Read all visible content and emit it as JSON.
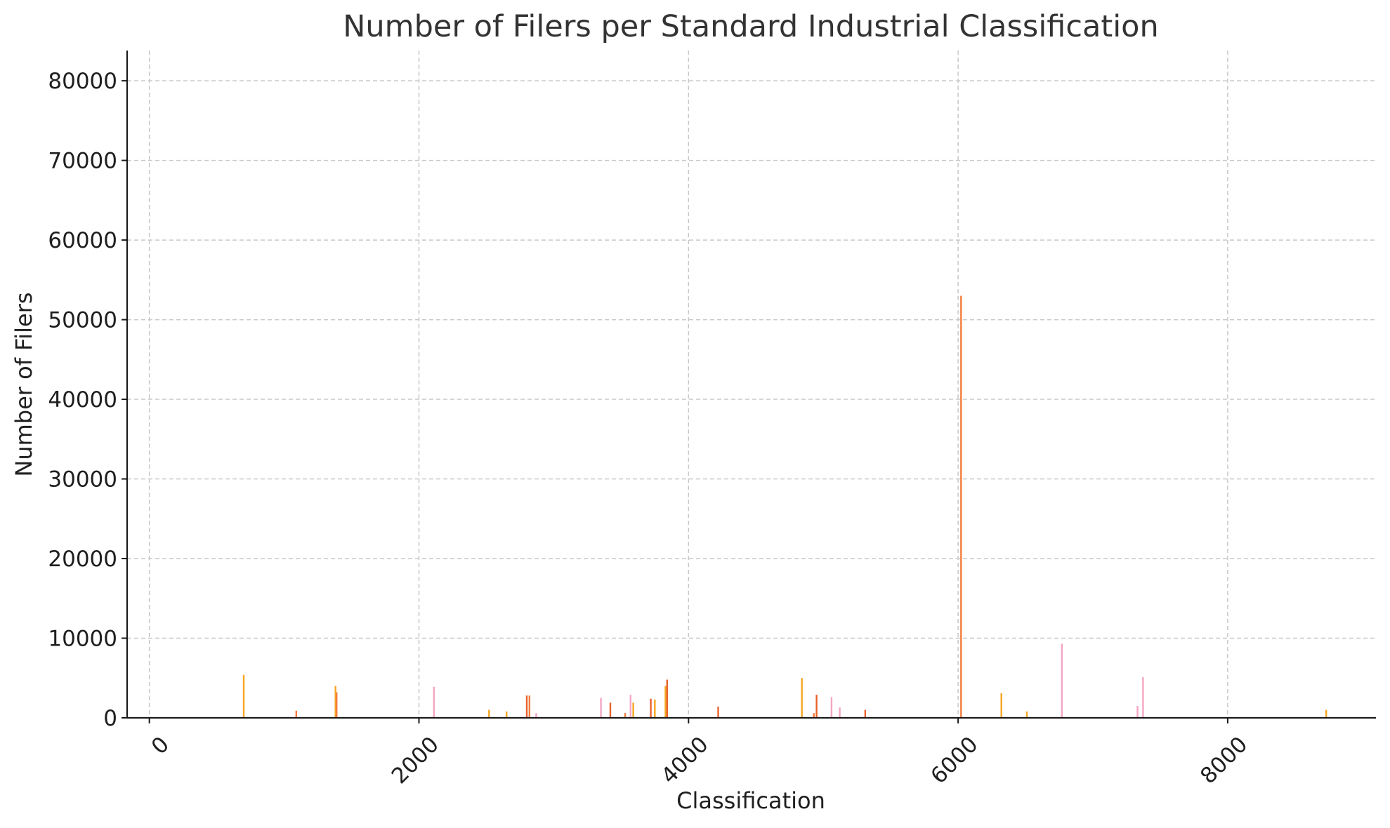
{
  "chart_data": {
    "type": "bar",
    "title": "Number of Filers per Standard Industrial Classification",
    "xlabel": "Classification",
    "ylabel": "Number of Filers",
    "xlim": [
      -165,
      9100
    ],
    "ylim": [
      0,
      83800
    ],
    "x_ticks": [
      0,
      2000,
      4000,
      6000,
      8000
    ],
    "y_ticks": [
      0,
      10000,
      20000,
      30000,
      40000,
      50000,
      60000,
      70000,
      80000
    ],
    "grid": true,
    "legend": "none",
    "palette": [
      "#f5a623",
      "#f47c3c",
      "#f4a6c4",
      "#e8622c"
    ],
    "bars": [
      {
        "x": 700,
        "value": 5400,
        "color": "#f5a623"
      },
      {
        "x": 1090,
        "value": 900,
        "color": "#f47c3c"
      },
      {
        "x": 1381,
        "value": 4000,
        "color": "#f5a623"
      },
      {
        "x": 1389,
        "value": 3200,
        "color": "#f47c3c"
      },
      {
        "x": 2111,
        "value": 3900,
        "color": "#f4a6c4"
      },
      {
        "x": 2520,
        "value": 1000,
        "color": "#f5a623"
      },
      {
        "x": 2650,
        "value": 800,
        "color": "#f5a623"
      },
      {
        "x": 2800,
        "value": 2800,
        "color": "#e8622c"
      },
      {
        "x": 2820,
        "value": 2800,
        "color": "#f47c3c"
      },
      {
        "x": 2870,
        "value": 600,
        "color": "#f4a6c4"
      },
      {
        "x": 3350,
        "value": 2500,
        "color": "#f4a6c4"
      },
      {
        "x": 3420,
        "value": 1900,
        "color": "#e8622c"
      },
      {
        "x": 3530,
        "value": 600,
        "color": "#f47c3c"
      },
      {
        "x": 3570,
        "value": 2900,
        "color": "#f4a6c4"
      },
      {
        "x": 3590,
        "value": 1900,
        "color": "#f5a623"
      },
      {
        "x": 3720,
        "value": 2400,
        "color": "#e8622c"
      },
      {
        "x": 3750,
        "value": 2300,
        "color": "#f5a623"
      },
      {
        "x": 3829,
        "value": 4000,
        "color": "#f5a623"
      },
      {
        "x": 3841,
        "value": 4800,
        "color": "#e8622c"
      },
      {
        "x": 4220,
        "value": 1400,
        "color": "#e8622c"
      },
      {
        "x": 4841,
        "value": 5000,
        "color": "#f5a623"
      },
      {
        "x": 4930,
        "value": 600,
        "color": "#f47c3c"
      },
      {
        "x": 4950,
        "value": 2900,
        "color": "#e8622c"
      },
      {
        "x": 5061,
        "value": 2600,
        "color": "#f4a6c4"
      },
      {
        "x": 5122,
        "value": 1300,
        "color": "#f4a6c4"
      },
      {
        "x": 5311,
        "value": 1000,
        "color": "#e8622c"
      },
      {
        "x": 6022,
        "value": 53000,
        "color": "#f47c3c"
      },
      {
        "x": 6321,
        "value": 3100,
        "color": "#f5a623"
      },
      {
        "x": 6510,
        "value": 800,
        "color": "#f5a623"
      },
      {
        "x": 6770,
        "value": 9300,
        "color": "#f4a6c4"
      },
      {
        "x": 7331,
        "value": 1500,
        "color": "#f4a6c4"
      },
      {
        "x": 7372,
        "value": 5100,
        "color": "#f4a6c4"
      },
      {
        "x": 8731,
        "value": 1000,
        "color": "#f5a623"
      }
    ]
  }
}
